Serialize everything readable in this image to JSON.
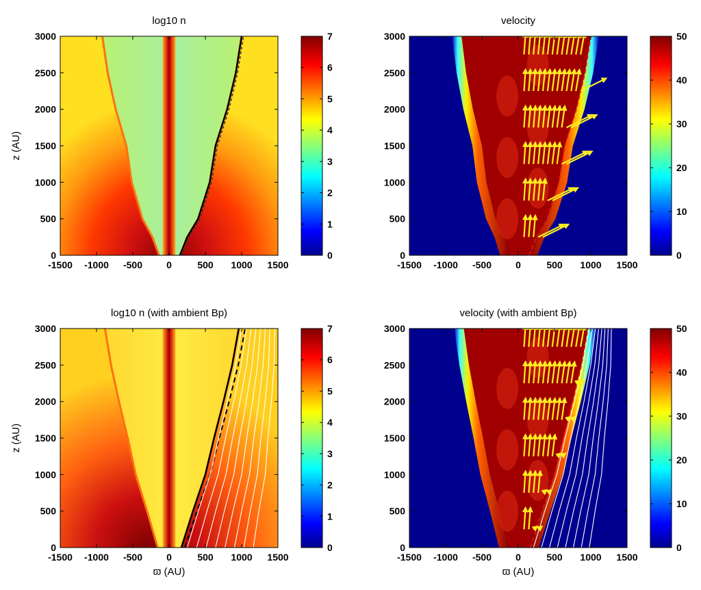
{
  "chart_data": [
    {
      "type": "heatmap",
      "title": "log10 n",
      "xlabel": "",
      "ylabel": "z (AU)",
      "xlim": [
        -1500,
        1500
      ],
      "ylim": [
        0,
        3000
      ],
      "xticks": [
        "-1500",
        "-1000",
        "-500",
        "0",
        "500",
        "1000",
        "1500"
      ],
      "yticks": [
        "0",
        "500",
        "1000",
        "1500",
        "2000",
        "2500",
        "3000"
      ],
      "colorbar": {
        "ticks": [
          "0",
          "1",
          "2",
          "3",
          "4",
          "5",
          "6",
          "7"
        ],
        "range": [
          0,
          7
        ]
      },
      "jet_half_width": 40,
      "boundary": [
        [
          0,
          150
        ],
        [
          250,
          250
        ],
        [
          500,
          400
        ],
        [
          1000,
          560
        ],
        [
          1500,
          640
        ],
        [
          2000,
          800
        ],
        [
          2500,
          920
        ],
        [
          3000,
          1000
        ]
      ],
      "overlay": "dashed-contour-black"
    },
    {
      "type": "heatmap",
      "title": "velocity",
      "xlabel": "",
      "ylabel": "",
      "xlim": [
        -1500,
        1500
      ],
      "ylim": [
        0,
        3000
      ],
      "xticks": [
        "-1500",
        "-1000",
        "-500",
        "0",
        "500",
        "1000",
        "1500"
      ],
      "yticks": [
        "0",
        "500",
        "1000",
        "1500",
        "2000",
        "2500",
        "3000"
      ],
      "colorbar": {
        "ticks": [
          "0",
          "10",
          "20",
          "30",
          "40",
          "50"
        ],
        "range": [
          0,
          50
        ]
      },
      "boundary": [
        [
          0,
          150
        ],
        [
          250,
          250
        ],
        [
          500,
          400
        ],
        [
          1000,
          560
        ],
        [
          1500,
          640
        ],
        [
          2000,
          800
        ],
        [
          2500,
          920
        ],
        [
          3000,
          1000
        ]
      ],
      "overlay": "velocity-arrows"
    },
    {
      "type": "heatmap",
      "title": "log10 n (with ambient Bp)",
      "xlabel": "ϖ (AU)",
      "ylabel": "z (AU)",
      "xlim": [
        -1500,
        1500
      ],
      "ylim": [
        0,
        3000
      ],
      "xticks": [
        "-1500",
        "-1000",
        "-500",
        "0",
        "500",
        "1000",
        "1500"
      ],
      "yticks": [
        "0",
        "500",
        "1000",
        "1500",
        "2000",
        "2500",
        "3000"
      ],
      "colorbar": {
        "ticks": [
          "0",
          "1",
          "2",
          "3",
          "4",
          "5",
          "6",
          "7"
        ],
        "range": [
          0,
          7
        ]
      },
      "jet_half_width": 40,
      "boundary": [
        [
          0,
          170
        ],
        [
          500,
          330
        ],
        [
          1000,
          500
        ],
        [
          1500,
          620
        ],
        [
          2000,
          750
        ],
        [
          2500,
          870
        ],
        [
          3000,
          960
        ]
      ],
      "overlay": "field-lines"
    },
    {
      "type": "heatmap",
      "title": "velocity (with ambient Bp)",
      "xlabel": "ϖ (AU)",
      "ylabel": "",
      "xlim": [
        -1500,
        1500
      ],
      "ylim": [
        0,
        3000
      ],
      "xticks": [
        "-1500",
        "-1000",
        "-500",
        "0",
        "500",
        "1000",
        "1500"
      ],
      "yticks": [
        "0",
        "500",
        "1000",
        "1500",
        "2000",
        "2500",
        "3000"
      ],
      "colorbar": {
        "ticks": [
          "0",
          "10",
          "20",
          "30",
          "40",
          "50"
        ],
        "range": [
          0,
          50
        ]
      },
      "boundary": [
        [
          0,
          170
        ],
        [
          500,
          330
        ],
        [
          1000,
          500
        ],
        [
          1500,
          620
        ],
        [
          2000,
          750
        ],
        [
          2500,
          870
        ],
        [
          3000,
          960
        ]
      ],
      "overlay": "velocity-arrows-and-field-lines"
    }
  ],
  "colors": {
    "arrow": "#ffee22",
    "field_line": "#ffffff",
    "contour_black": "#000000",
    "contour_red": "#e01010"
  }
}
